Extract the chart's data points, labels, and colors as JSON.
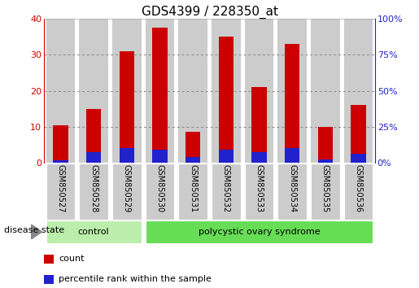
{
  "title": "GDS4399 / 228350_at",
  "samples": [
    "GSM850527",
    "GSM850528",
    "GSM850529",
    "GSM850530",
    "GSM850531",
    "GSM850532",
    "GSM850533",
    "GSM850534",
    "GSM850535",
    "GSM850536"
  ],
  "count_values": [
    10.5,
    15.0,
    31.0,
    37.5,
    8.5,
    35.0,
    21.0,
    33.0,
    10.0,
    16.0
  ],
  "percentile_values": [
    1.5,
    7.5,
    10.0,
    9.0,
    4.0,
    9.0,
    7.5,
    10.0,
    2.0,
    6.0
  ],
  "count_color": "#cc0000",
  "percentile_color": "#2222cc",
  "bar_width": 0.45,
  "ylim_left": [
    0,
    40
  ],
  "ylim_right": [
    0,
    100
  ],
  "yticks_left": [
    0,
    10,
    20,
    30,
    40
  ],
  "yticks_right": [
    0,
    25,
    50,
    75,
    100
  ],
  "ytick_labels_right": [
    "0%",
    "25%",
    "50%",
    "75%",
    "100%"
  ],
  "groups": [
    {
      "label": "control",
      "start": 0,
      "end": 3,
      "color": "#bbeeaa"
    },
    {
      "label": "polycystic ovary syndrome",
      "start": 3,
      "end": 10,
      "color": "#66dd55"
    }
  ],
  "disease_state_label": "disease state",
  "legend_items": [
    {
      "label": "count",
      "color": "#cc0000"
    },
    {
      "label": "percentile rank within the sample",
      "color": "#2222cc"
    }
  ],
  "grid_color": "#888888",
  "background_color": "#ffffff",
  "bar_bg_color": "#cccccc",
  "title_fontsize": 11,
  "tick_fontsize": 8,
  "label_fontsize": 8
}
